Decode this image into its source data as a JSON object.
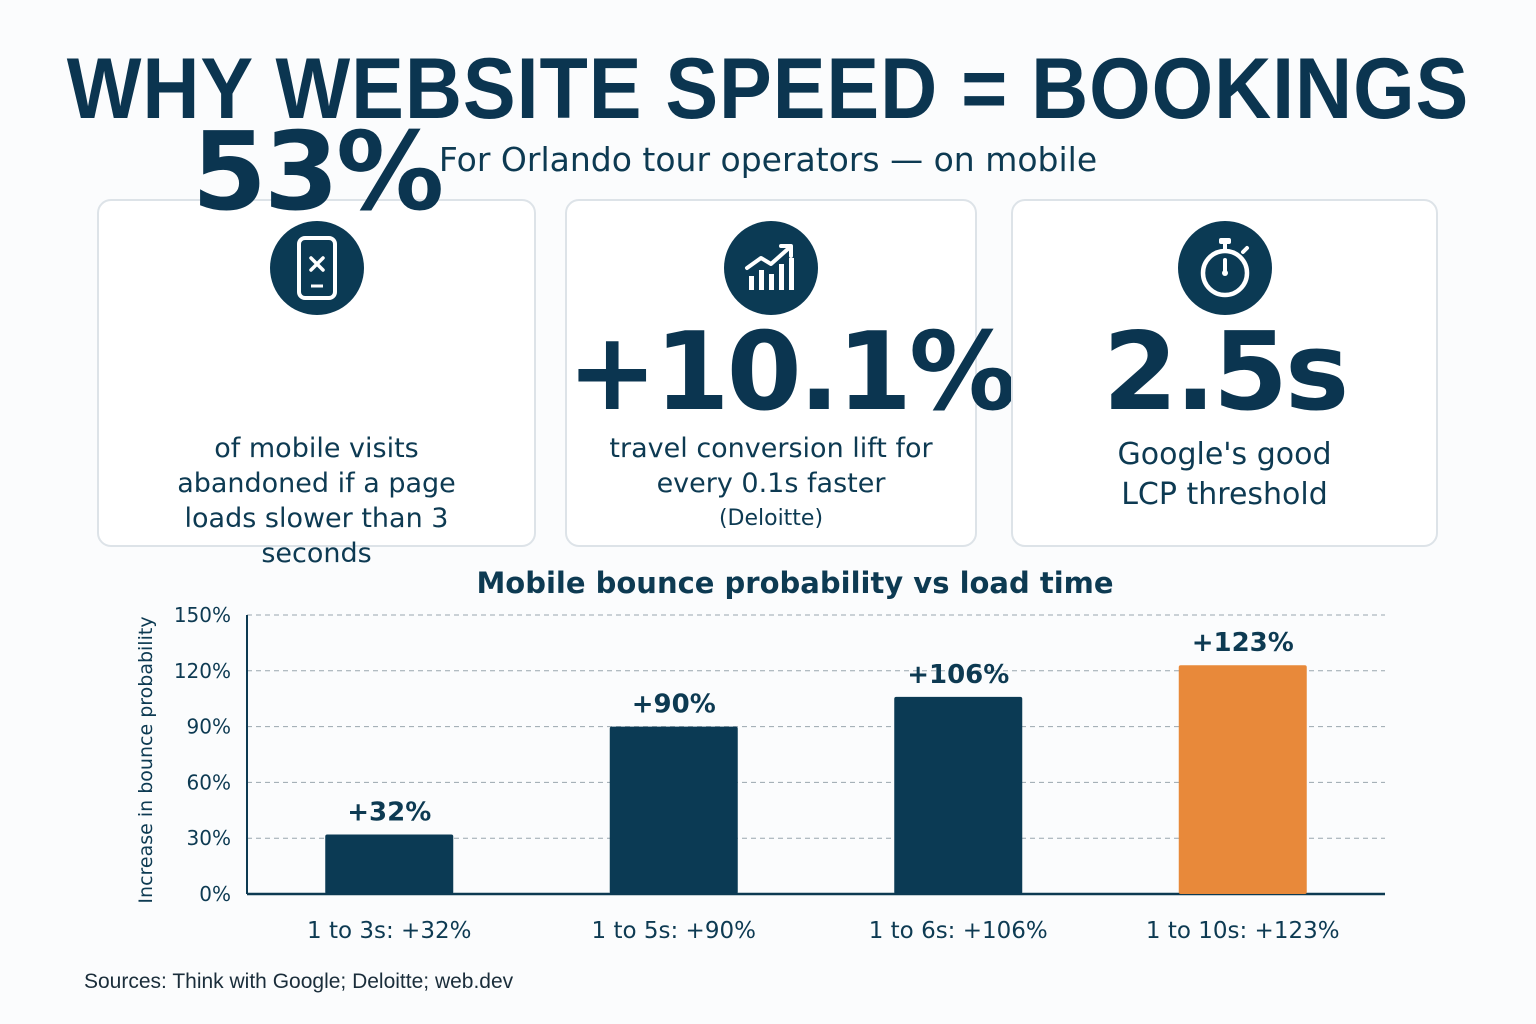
{
  "header": {
    "title": "WHY WEBSITE SPEED = BOOKINGS",
    "subtitle": "For Orlando tour operators — on mobile"
  },
  "cards": [
    {
      "icon": "mobile-error-icon",
      "stat": "53%",
      "description": "of mobile visits abandoned if a page loads slower than 3 seconds",
      "note": ""
    },
    {
      "icon": "growth-chart-icon",
      "stat": "+10.1%",
      "description": "travel conversion lift for every 0.1s faster",
      "note": "(Deloitte)"
    },
    {
      "icon": "stopwatch-icon",
      "stat": "2.5s",
      "description": "Google's good LCP threshold",
      "note": ""
    }
  ],
  "chart_data": {
    "type": "bar",
    "title": "Mobile bounce probability vs load time",
    "ylabel": "Increase in bounce probability",
    "xlabel": "",
    "categories": [
      "1 to 3s: +32%",
      "1 to 5s: +90%",
      "1 to 6s: +106%",
      "1 to 10s: +123%"
    ],
    "values": [
      32,
      90,
      106,
      123
    ],
    "data_labels": [
      "+32%",
      "+90%",
      "+106%",
      "+123%"
    ],
    "ylim": [
      0,
      150
    ],
    "yticks": [
      "0%",
      "30%",
      "60%",
      "90%",
      "120%",
      "150%"
    ],
    "grid": true,
    "colors": [
      "#0b3a54",
      "#0b3a54",
      "#0b3a54",
      "#e8893a"
    ]
  },
  "footer": {
    "sources": "Sources: Think with Google; Deloitte; web.dev"
  }
}
